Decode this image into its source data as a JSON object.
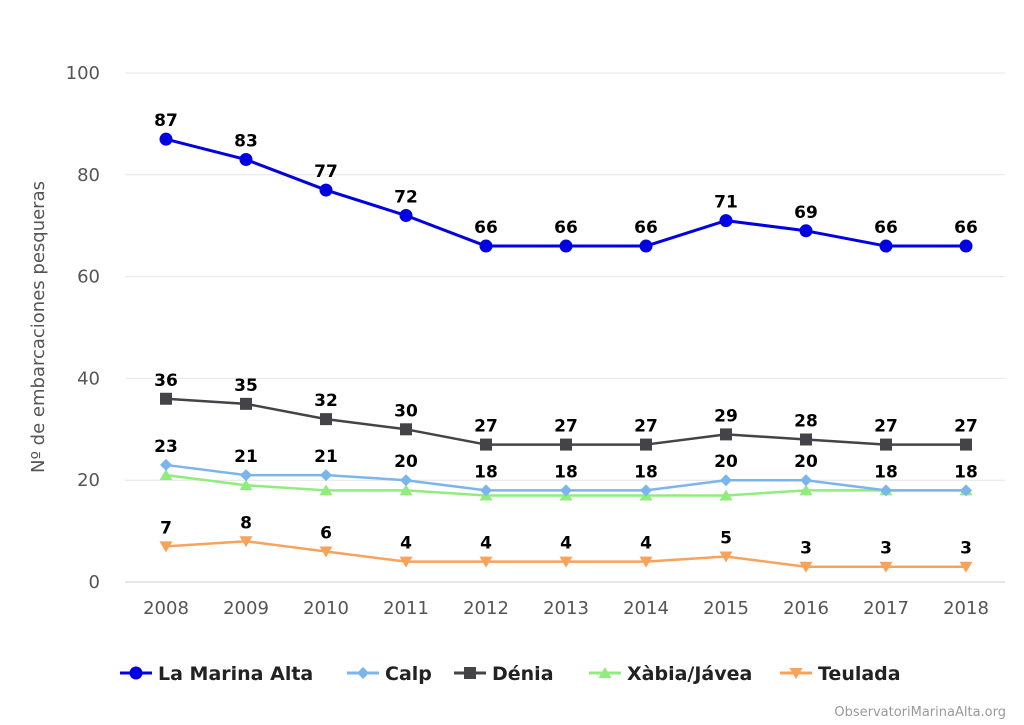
{
  "chart_data": {
    "type": "line",
    "ylabel": "Nº de embarcaciones pesqueras",
    "xlabel": "",
    "ylim": [
      0,
      100
    ],
    "yticks": [
      0,
      20,
      40,
      60,
      80,
      100
    ],
    "x": [
      "2008",
      "2009",
      "2010",
      "2011",
      "2012",
      "2013",
      "2014",
      "2015",
      "2016",
      "2017",
      "2018"
    ],
    "grid": true,
    "legend_position": "bottom",
    "series": [
      {
        "name": "La Marina Alta",
        "color": "#0000e0",
        "marker": "circle",
        "values": [
          87,
          83,
          77,
          72,
          66,
          66,
          66,
          71,
          69,
          66,
          66
        ],
        "labels": true
      },
      {
        "name": "Calp",
        "color": "#7cb5ec",
        "marker": "diamond",
        "values": [
          23,
          21,
          21,
          20,
          18,
          18,
          18,
          20,
          20,
          18,
          18
        ],
        "labels": true
      },
      {
        "name": "Dénia",
        "color": "#434348",
        "marker": "square",
        "values": [
          36,
          35,
          32,
          30,
          27,
          27,
          27,
          29,
          28,
          27,
          27
        ],
        "labels": true
      },
      {
        "name": "Xàbia/Jávea",
        "color": "#90ed7d",
        "marker": "triangle",
        "values": [
          21,
          19,
          18,
          18,
          17,
          17,
          17,
          17,
          18,
          18,
          18
        ],
        "labels": false
      },
      {
        "name": "Teulada",
        "color": "#f7a35c",
        "marker": "triangle-down",
        "values": [
          7,
          8,
          6,
          4,
          4,
          4,
          4,
          5,
          3,
          3,
          3
        ],
        "labels": true
      }
    ]
  },
  "credit": "ObservatoriMarinaAlta.org"
}
